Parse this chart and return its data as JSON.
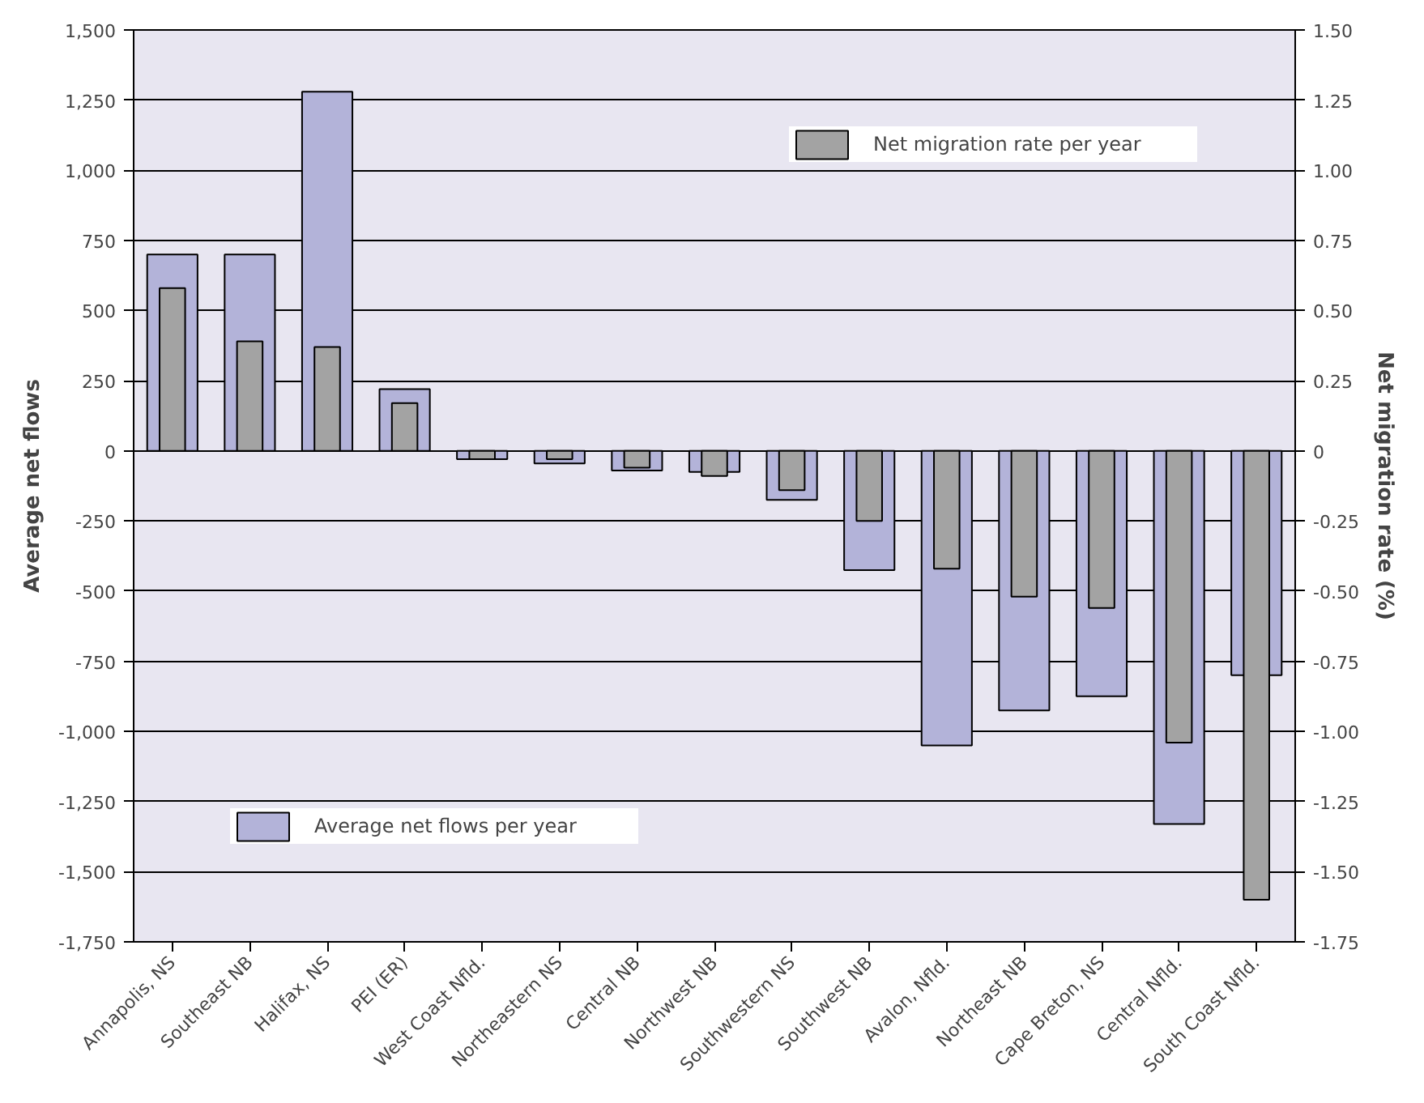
{
  "chart_data": {
    "type": "bar",
    "ylabel": "Average net flows",
    "y2label": "Net migration rate (%)",
    "categories": [
      "Annapolis, NS",
      "Southeast NB",
      "Halifax, NS",
      "PEI (ER)",
      "West Coast Nfld.",
      "Northeastern NS",
      "Central NB",
      "Northwest NB",
      "Southwestern NS",
      "Southwest NB",
      "Avalon, Nfld.",
      "Northeast NB",
      "Cape Breton, NS",
      "Central Nfld.",
      "South Coast Nfld."
    ],
    "series": [
      {
        "name": "Average net flows per year",
        "color": "#b3b3d9",
        "values": [
          700,
          700,
          1280,
          220,
          -30,
          -45,
          -70,
          -75,
          -175,
          -425,
          -1050,
          -925,
          -875,
          -1330,
          -800
        ]
      },
      {
        "name": "Net migration rate per year",
        "color": "#a3a3a3",
        "axis": "y2",
        "values": [
          0.58,
          0.39,
          0.37,
          0.17,
          -0.03,
          -0.03,
          -0.06,
          -0.09,
          -0.14,
          -0.25,
          -0.42,
          -0.52,
          -0.56,
          -1.04,
          -1.6
        ]
      }
    ],
    "ylim": [
      -1750,
      1500
    ],
    "yticks": [
      {
        "value": -1750,
        "label": "-1,750"
      },
      {
        "value": -1500,
        "label": "-1,500"
      },
      {
        "value": -1250,
        "label": "-1,250"
      },
      {
        "value": -1000,
        "label": "-1,000"
      },
      -750,
      -500,
      -250,
      0,
      250,
      500,
      750,
      {
        "value": 1000,
        "label": "1,000"
      },
      {
        "value": 1250,
        "label": "1,250"
      },
      {
        "value": 1500,
        "label": "1,500"
      }
    ],
    "y2lim": [
      -1.75,
      1.5
    ],
    "y2ticks": [
      {
        "value": -1.75,
        "label": "-1.75"
      },
      {
        "value": -1.5,
        "label": "-1.50"
      },
      {
        "value": -1.25,
        "label": "-1.25"
      },
      {
        "value": -1.0,
        "label": "-1.00"
      },
      {
        "value": -0.75,
        "label": "-0.75"
      },
      {
        "value": -0.5,
        "label": "-0.50"
      },
      {
        "value": -0.25,
        "label": "-0.25"
      },
      0,
      {
        "value": 0.25,
        "label": "0.25"
      },
      {
        "value": 0.5,
        "label": "0.50"
      },
      {
        "value": 0.75,
        "label": "0.75"
      },
      {
        "value": 1.0,
        "label": "1.00"
      },
      {
        "value": 1.25,
        "label": "1.25"
      },
      {
        "value": 1.5,
        "label": "1.50"
      }
    ],
    "grid": "y",
    "legend": "top right"
  }
}
